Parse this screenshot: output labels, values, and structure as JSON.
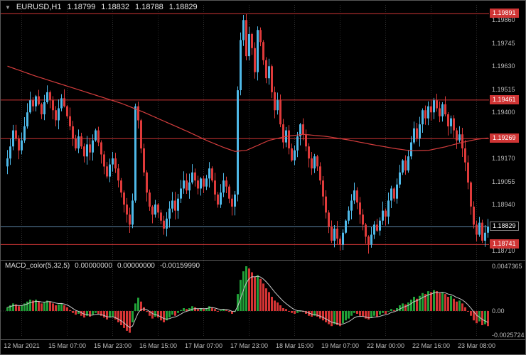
{
  "header": {
    "dropdown_icon": "▼",
    "symbol": "EURUSD,H1",
    "open": "1.18799",
    "high": "1.18832",
    "low": "1.18788",
    "close": "1.18829"
  },
  "indicator": {
    "name": "MACD_color(5,32,5)",
    "values": [
      "0.00000000",
      "0.00000000",
      "-0.00159990"
    ],
    "axis_labels": [
      "0.0047365",
      "0.00",
      "-0.0025724"
    ]
  },
  "price_axis": {
    "labels": [
      "1.19860",
      "1.19745",
      "1.19630",
      "1.19515",
      "1.19400",
      "1.19170",
      "1.19055",
      "1.18940",
      "1.18710"
    ],
    "level_badges": [
      "1.19891",
      "1.19461",
      "1.19269",
      "1.18741"
    ],
    "current": "1.18829"
  },
  "time_axis": {
    "labels": [
      {
        "text": "12 Mar 2021",
        "bar": 5
      },
      {
        "text": "15 Mar 07:00",
        "bar": 21
      },
      {
        "text": "15 Mar 23:00",
        "bar": 37
      },
      {
        "text": "16 Mar 15:00",
        "bar": 53
      },
      {
        "text": "17 Mar 07:00",
        "bar": 69
      },
      {
        "text": "17 Mar 23:00",
        "bar": 85
      },
      {
        "text": "18 Mar 15:00",
        "bar": 101
      },
      {
        "text": "19 Mar 07:00",
        "bar": 117
      },
      {
        "text": "22 Mar 00:00",
        "bar": 133
      },
      {
        "text": "22 Mar 16:00",
        "bar": 149
      },
      {
        "text": "23 Mar 08:00",
        "bar": 165
      }
    ]
  },
  "colors": {
    "background": "#000000",
    "bull": "#4fb9e8",
    "bear": "#df3a3a",
    "ma_line": "#d43d3d",
    "level_line": "#cc3434",
    "current_price_line": "#5e87a8",
    "grid": "#2e2e2e",
    "axis_text": "#bdbdbd",
    "header_text": "#e6e6e6",
    "badge_red": "#d03535",
    "badge_dark": "#000000",
    "macd_up": "#21a038",
    "macd_down": "#d43434",
    "macd_signal": "#c8c8c8",
    "separator": "#5c5c5c"
  },
  "chart_data": {
    "type": "candlestick",
    "title": "EURUSD,H1",
    "timeframe": "H1",
    "price_range": [
      1.18675,
      1.19935
    ],
    "levels": [
      1.19891,
      1.19461,
      1.19269,
      1.18741
    ],
    "current_price": 1.18829,
    "current_bar_ohlc": [
      1.18799,
      1.18832,
      1.18788,
      1.18829
    ],
    "closes": [
      1.1917,
      1.1923,
      1.1931,
      1.1927,
      1.1921,
      1.1926,
      1.1933,
      1.194,
      1.1946,
      1.1943,
      1.1948,
      1.1944,
      1.1939,
      1.1945,
      1.195,
      1.1946,
      1.1941,
      1.1936,
      1.1942,
      1.1947,
      1.1943,
      1.1938,
      1.1933,
      1.1927,
      1.1922,
      1.1928,
      1.1923,
      1.1918,
      1.1924,
      1.192,
      1.1926,
      1.1931,
      1.1925,
      1.1919,
      1.1913,
      1.1908,
      1.1914,
      1.1917,
      1.1912,
      1.1906,
      1.19,
      1.1894,
      1.1889,
      1.1884,
      1.1896,
      1.1943,
      1.1936,
      1.1922,
      1.191,
      1.19,
      1.1893,
      1.1889,
      1.1894,
      1.189,
      1.1886,
      1.1882,
      1.1887,
      1.1892,
      1.1896,
      1.1891,
      1.1897,
      1.1902,
      1.1906,
      1.1901,
      1.1905,
      1.191,
      1.1906,
      1.1902,
      1.1907,
      1.1903,
      1.1907,
      1.1912,
      1.1906,
      1.1899,
      1.1894,
      1.19,
      1.1906,
      1.1903,
      1.1897,
      1.1893,
      1.1899,
      1.1951,
      1.1976,
      1.1986,
      1.1968,
      1.1979,
      1.1972,
      1.196,
      1.1981,
      1.1975,
      1.1966,
      1.1957,
      1.1963,
      1.195,
      1.1941,
      1.1946,
      1.1934,
      1.1925,
      1.1931,
      1.1922,
      1.1916,
      1.1921,
      1.1928,
      1.1934,
      1.1929,
      1.1923,
      1.1917,
      1.1912,
      1.1918,
      1.1913,
      1.1906,
      1.1898,
      1.189,
      1.1883,
      1.1876,
      1.1882,
      1.1877,
      1.1874,
      1.188,
      1.1886,
      1.1891,
      1.1896,
      1.1901,
      1.1895,
      1.1889,
      1.1884,
      1.1878,
      1.1874,
      1.1879,
      1.1884,
      1.1881,
      1.1886,
      1.1891,
      1.1888,
      1.1896,
      1.1902,
      1.1897,
      1.1904,
      1.191,
      1.1916,
      1.1911,
      1.1918,
      1.1925,
      1.1932,
      1.1927,
      1.1934,
      1.1941,
      1.1937,
      1.1943,
      1.194,
      1.1946,
      1.1942,
      1.1938,
      1.1944,
      1.1939,
      1.1933,
      1.1937,
      1.1931,
      1.1926,
      1.1929,
      1.1922,
      1.1915,
      1.1905,
      1.1893,
      1.1884,
      1.1879,
      1.1885,
      1.1876,
      1.188,
      1.18829
    ],
    "ma_points": [
      [
        0,
        1.1963
      ],
      [
        10,
        1.1958
      ],
      [
        20,
        1.19535
      ],
      [
        30,
        1.1949
      ],
      [
        40,
        1.19445
      ],
      [
        48,
        1.194
      ],
      [
        56,
        1.1935
      ],
      [
        64,
        1.193
      ],
      [
        70,
        1.1926
      ],
      [
        76,
        1.19225
      ],
      [
        80,
        1.19205
      ],
      [
        84,
        1.1921
      ],
      [
        88,
        1.19235
      ],
      [
        92,
        1.1926
      ],
      [
        98,
        1.1928
      ],
      [
        104,
        1.1929
      ],
      [
        112,
        1.1928
      ],
      [
        120,
        1.19262
      ],
      [
        128,
        1.1924
      ],
      [
        136,
        1.1922
      ],
      [
        142,
        1.19208
      ],
      [
        148,
        1.1921
      ],
      [
        154,
        1.19228
      ],
      [
        160,
        1.1925
      ],
      [
        165,
        1.19265
      ],
      [
        169,
        1.19272
      ]
    ],
    "macd_range": [
      -0.0025724,
      0.0047365
    ],
    "macd_values": [
      0.0004,
      0.0006,
      0.0008,
      0.0007,
      0.0005,
      0.0006,
      0.0008,
      0.001,
      0.0012,
      0.0011,
      0.0012,
      0.001,
      0.0008,
      0.0009,
      0.0011,
      0.001,
      0.0008,
      0.0006,
      0.0007,
      0.0008,
      0.0006,
      0.0004,
      0.0001,
      -0.0002,
      -0.0004,
      -0.0003,
      -0.0005,
      -0.0007,
      -0.0005,
      -0.0006,
      -0.0004,
      -0.0002,
      -0.0003,
      -0.0005,
      -0.0007,
      -0.0009,
      -0.0007,
      -0.0006,
      -0.0009,
      -0.0012,
      -0.0015,
      -0.0018,
      -0.0021,
      -0.0023,
      -0.0012,
      0.0008,
      0.0014,
      0.001,
      0.0004,
      -0.0001,
      -0.0005,
      -0.0008,
      -0.0006,
      -0.0007,
      -0.001,
      -0.0012,
      -0.001,
      -0.0007,
      -0.0004,
      -0.0005,
      -0.0002,
      0.0001,
      0.0003,
      0.0002,
      0.0003,
      0.0005,
      0.0004,
      0.0002,
      0.0003,
      0.0002,
      0.0003,
      0.0005,
      0.0004,
      0.0002,
      0.0,
      0.0001,
      0.0002,
      0.0001,
      -0.0001,
      -0.0003,
      -0.0001,
      0.0018,
      0.0033,
      0.0042,
      0.00474,
      0.0045,
      0.0041,
      0.0036,
      0.0038,
      0.0034,
      0.0029,
      0.0024,
      0.002,
      0.0015,
      0.0011,
      0.0009,
      0.0006,
      0.0003,
      0.0002,
      0.0,
      -0.0002,
      -0.0003,
      -0.0002,
      0.0,
      -0.0001,
      -0.0003,
      -0.0005,
      -0.0006,
      -0.0005,
      -0.0006,
      -0.0008,
      -0.001,
      -0.0012,
      -0.0014,
      -0.0016,
      -0.0014,
      -0.0015,
      -0.0016,
      -0.0013,
      -0.001,
      -0.0008,
      -0.0005,
      -0.0002,
      -0.0003,
      -0.0005,
      -0.0006,
      -0.0008,
      -0.0009,
      -0.0007,
      -0.0005,
      -0.0006,
      -0.0004,
      -0.0002,
      -0.0003,
      -0.0001,
      0.0002,
      0.0001,
      0.0003,
      0.0006,
      0.0008,
      0.0007,
      0.0009,
      0.0012,
      0.0015,
      0.0013,
      0.0016,
      0.0019,
      0.0018,
      0.0021,
      0.002,
      0.0022,
      0.0021,
      0.0019,
      0.002,
      0.0018,
      0.0015,
      0.0016,
      0.0013,
      0.001,
      0.0011,
      0.0008,
      0.0004,
      0.0,
      -0.0005,
      -0.001,
      -0.0013,
      -0.0011,
      -0.0015,
      -0.0014,
      -0.0016
    ]
  }
}
